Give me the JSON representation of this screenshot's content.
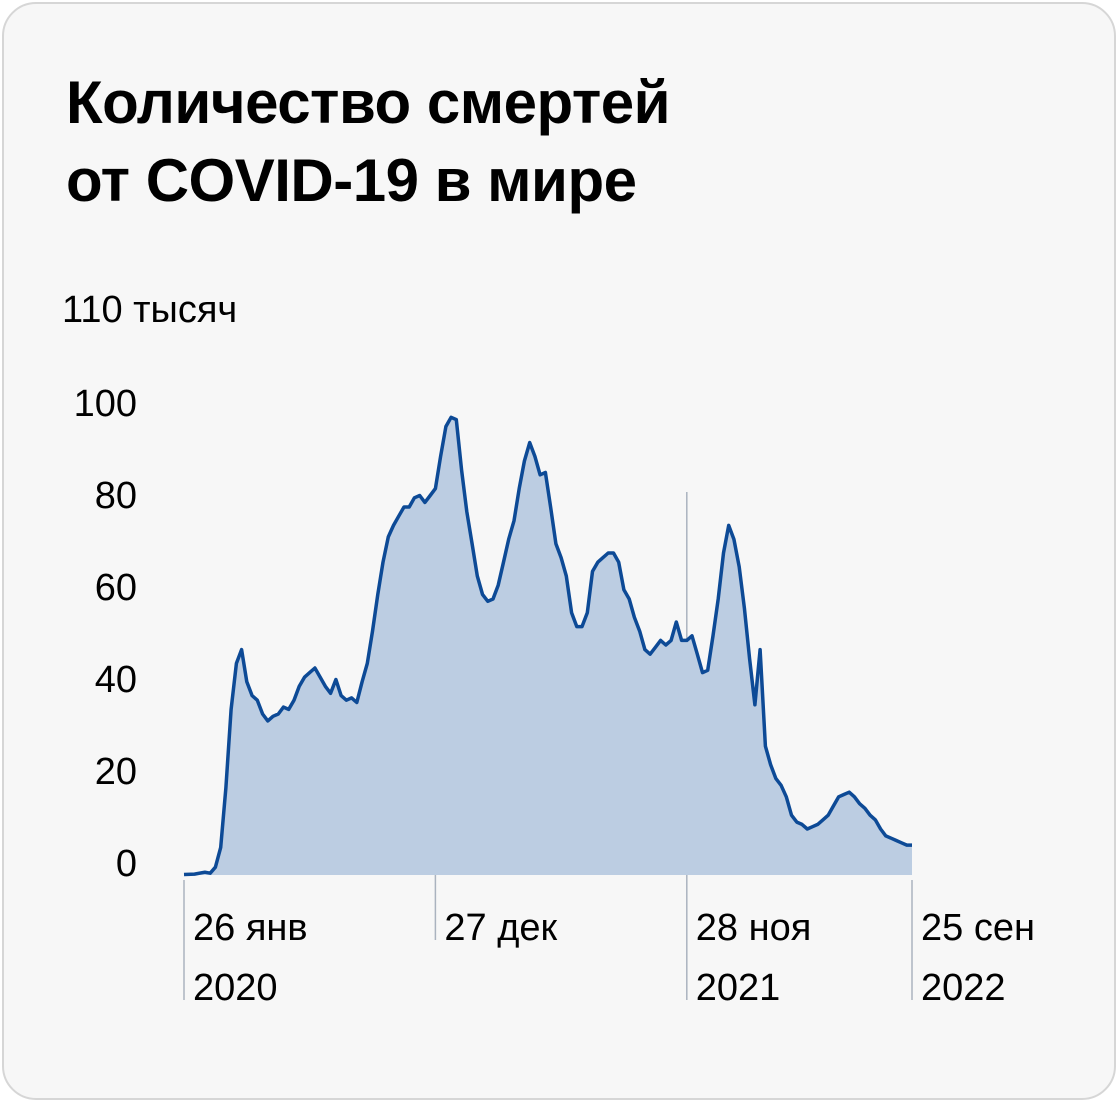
{
  "title_lines": [
    "Количество смертей",
    "от COVID-19 в мире"
  ],
  "chart_data": {
    "type": "area",
    "title": "Количество смертей от COVID-19 в мире",
    "ylabel": "110 тысяч",
    "ylim": [
      0,
      110
    ],
    "y_ticks": [
      {
        "value": 0,
        "label": "0"
      },
      {
        "value": 20,
        "label": "20"
      },
      {
        "value": 40,
        "label": "40"
      },
      {
        "value": 60,
        "label": "60"
      },
      {
        "value": 80,
        "label": "80"
      },
      {
        "value": 100,
        "label": "100"
      }
    ],
    "x_range": [
      "2020-01-26",
      "2022-09-25"
    ],
    "x_ticks": [
      {
        "date": "2020-01-26",
        "lines": [
          "26 янв",
          "2020"
        ]
      },
      {
        "date": "2020-12-27",
        "lines": [
          "27 дек",
          ""
        ]
      },
      {
        "date": "2021-11-28",
        "lines": [
          "28 ноя",
          "2021"
        ]
      },
      {
        "date": "2022-09-25",
        "lines": [
          "25 сен",
          "2022"
        ]
      }
    ],
    "colors": {
      "line": "#0d4a96",
      "fill": "#bccde2",
      "grid": "#aab3bf"
    },
    "series": [
      {
        "points": [
          [
            "2020-01-26",
            0.1
          ],
          [
            "2020-02-09",
            0.2
          ],
          [
            "2020-02-23",
            0.6
          ],
          [
            "2020-03-01",
            0.4
          ],
          [
            "2020-03-08",
            1.7
          ],
          [
            "2020-03-15",
            6
          ],
          [
            "2020-03-22",
            19
          ],
          [
            "2020-03-29",
            36
          ],
          [
            "2020-04-05",
            46
          ],
          [
            "2020-04-12",
            49
          ],
          [
            "2020-04-19",
            42
          ],
          [
            "2020-04-26",
            39
          ],
          [
            "2020-05-03",
            38
          ],
          [
            "2020-05-10",
            35
          ],
          [
            "2020-05-17",
            33.5
          ],
          [
            "2020-05-24",
            34.5
          ],
          [
            "2020-05-31",
            35
          ],
          [
            "2020-06-07",
            36.5
          ],
          [
            "2020-06-14",
            36
          ],
          [
            "2020-06-21",
            38
          ],
          [
            "2020-06-28",
            41
          ],
          [
            "2020-07-05",
            43
          ],
          [
            "2020-07-12",
            44
          ],
          [
            "2020-07-19",
            45
          ],
          [
            "2020-07-26",
            43
          ],
          [
            "2020-08-02",
            41
          ],
          [
            "2020-08-09",
            39.5
          ],
          [
            "2020-08-16",
            42.5
          ],
          [
            "2020-08-23",
            39
          ],
          [
            "2020-08-30",
            38
          ],
          [
            "2020-09-06",
            38.5
          ],
          [
            "2020-09-13",
            37.5
          ],
          [
            "2020-09-20",
            42
          ],
          [
            "2020-09-27",
            46
          ],
          [
            "2020-10-04",
            53
          ],
          [
            "2020-10-11",
            61
          ],
          [
            "2020-10-18",
            68
          ],
          [
            "2020-10-25",
            73.5
          ],
          [
            "2020-11-01",
            76
          ],
          [
            "2020-11-08",
            78
          ],
          [
            "2020-11-15",
            80
          ],
          [
            "2020-11-22",
            80
          ],
          [
            "2020-11-29",
            82
          ],
          [
            "2020-12-06",
            82.5
          ],
          [
            "2020-12-13",
            81
          ],
          [
            "2020-12-20",
            82.5
          ],
          [
            "2020-12-27",
            84
          ],
          [
            "2021-01-03",
            91
          ],
          [
            "2021-01-10",
            97.5
          ],
          [
            "2021-01-17",
            99.5
          ],
          [
            "2021-01-24",
            99
          ],
          [
            "2021-01-31",
            88
          ],
          [
            "2021-02-07",
            79
          ],
          [
            "2021-02-14",
            72
          ],
          [
            "2021-02-21",
            65
          ],
          [
            "2021-02-28",
            61
          ],
          [
            "2021-03-07",
            59.5
          ],
          [
            "2021-03-14",
            60
          ],
          [
            "2021-03-21",
            63
          ],
          [
            "2021-03-28",
            68
          ],
          [
            "2021-04-04",
            73
          ],
          [
            "2021-04-11",
            77
          ],
          [
            "2021-04-18",
            84
          ],
          [
            "2021-04-25",
            90
          ],
          [
            "2021-05-02",
            94
          ],
          [
            "2021-05-09",
            91
          ],
          [
            "2021-05-16",
            87
          ],
          [
            "2021-05-23",
            87.5
          ],
          [
            "2021-05-30",
            80
          ],
          [
            "2021-06-06",
            72
          ],
          [
            "2021-06-13",
            69
          ],
          [
            "2021-06-20",
            65
          ],
          [
            "2021-06-27",
            57
          ],
          [
            "2021-07-04",
            54
          ],
          [
            "2021-07-11",
            54
          ],
          [
            "2021-07-18",
            57
          ],
          [
            "2021-07-25",
            66
          ],
          [
            "2021-08-01",
            68
          ],
          [
            "2021-08-08",
            69
          ],
          [
            "2021-08-15",
            70
          ],
          [
            "2021-08-22",
            70
          ],
          [
            "2021-08-29",
            68
          ],
          [
            "2021-09-05",
            62
          ],
          [
            "2021-09-12",
            60
          ],
          [
            "2021-09-19",
            56
          ],
          [
            "2021-09-26",
            53
          ],
          [
            "2021-10-03",
            49
          ],
          [
            "2021-10-10",
            48
          ],
          [
            "2021-10-17",
            49.5
          ],
          [
            "2021-10-24",
            51
          ],
          [
            "2021-10-31",
            50
          ],
          [
            "2021-11-07",
            51
          ],
          [
            "2021-11-14",
            55
          ],
          [
            "2021-11-21",
            51
          ],
          [
            "2021-11-28",
            51
          ],
          [
            "2021-12-05",
            52
          ],
          [
            "2021-12-12",
            48
          ],
          [
            "2021-12-19",
            44
          ],
          [
            "2021-12-26",
            44.5
          ],
          [
            "2022-01-02",
            52
          ],
          [
            "2022-01-09",
            60
          ],
          [
            "2022-01-16",
            70
          ],
          [
            "2022-01-23",
            76
          ],
          [
            "2022-01-30",
            73
          ],
          [
            "2022-02-06",
            67
          ],
          [
            "2022-02-13",
            58
          ],
          [
            "2022-02-20",
            47
          ],
          [
            "2022-02-27",
            37
          ],
          [
            "2022-03-06",
            49
          ],
          [
            "2022-03-13",
            28
          ],
          [
            "2022-03-20",
            24
          ],
          [
            "2022-03-27",
            21
          ],
          [
            "2022-04-03",
            19.5
          ],
          [
            "2022-04-10",
            17
          ],
          [
            "2022-04-17",
            13
          ],
          [
            "2022-04-24",
            11.5
          ],
          [
            "2022-05-01",
            11
          ],
          [
            "2022-05-08",
            10
          ],
          [
            "2022-05-15",
            10.5
          ],
          [
            "2022-05-22",
            11
          ],
          [
            "2022-05-29",
            12
          ],
          [
            "2022-06-05",
            13
          ],
          [
            "2022-06-12",
            15
          ],
          [
            "2022-06-19",
            17
          ],
          [
            "2022-06-26",
            17.5
          ],
          [
            "2022-07-03",
            18
          ],
          [
            "2022-07-10",
            17
          ],
          [
            "2022-07-17",
            15.5
          ],
          [
            "2022-07-24",
            14.5
          ],
          [
            "2022-07-31",
            13
          ],
          [
            "2022-08-07",
            12
          ],
          [
            "2022-08-14",
            10
          ],
          [
            "2022-08-21",
            8.5
          ],
          [
            "2022-08-28",
            8
          ],
          [
            "2022-09-04",
            7.5
          ],
          [
            "2022-09-11",
            7
          ],
          [
            "2022-09-18",
            6.5
          ],
          [
            "2022-09-25",
            6.5
          ]
        ]
      }
    ],
    "grid": false,
    "legend": "none"
  }
}
